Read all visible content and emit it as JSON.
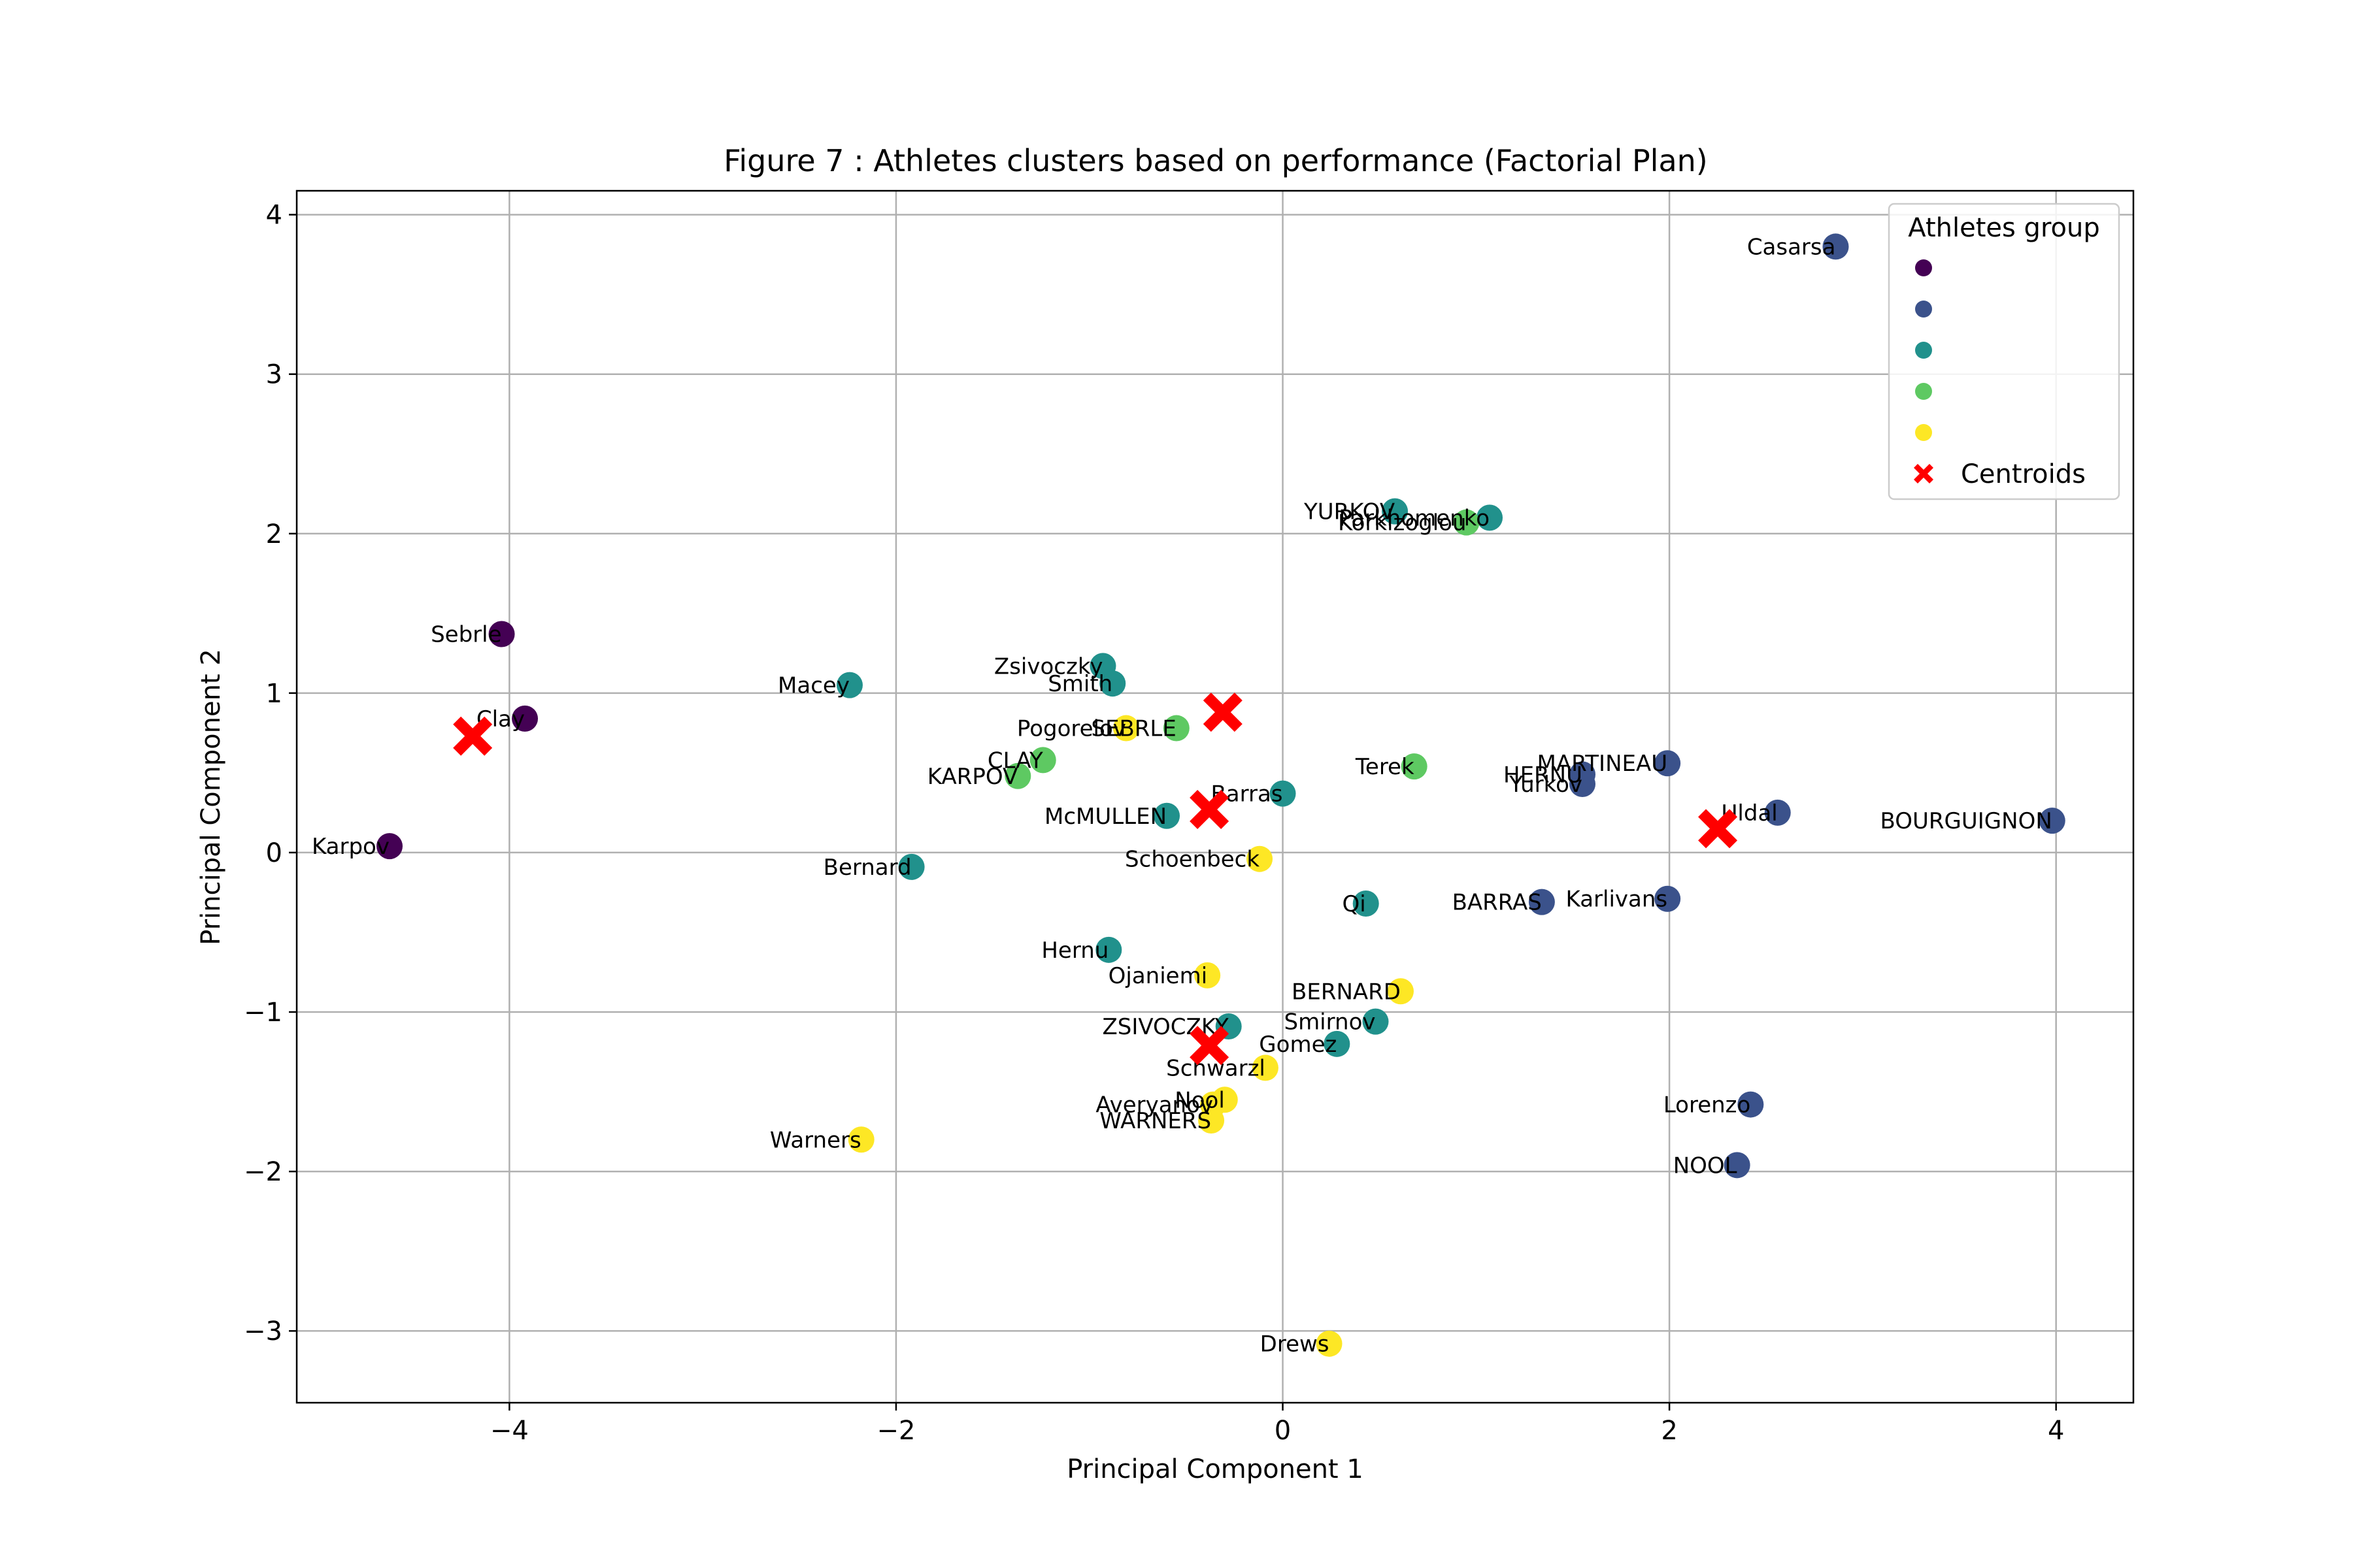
{
  "chart_data": {
    "type": "scatter",
    "title": "Figure 7 : Athletes clusters based on performance (Factorial Plan)",
    "xlabel": "Principal Component 1",
    "ylabel": "Principal Component 2",
    "xlim": [
      -5.1,
      4.4
    ],
    "ylim": [
      -3.45,
      4.15
    ],
    "xticks": [
      -4,
      -2,
      0,
      2,
      4
    ],
    "yticks": [
      -3,
      -2,
      -1,
      0,
      1,
      2,
      3,
      4
    ],
    "grid": true,
    "legend": {
      "title": "Athletes group",
      "placement": "top-right",
      "entries": [
        {
          "label": "",
          "color": "#440154",
          "marker": "circle"
        },
        {
          "label": "",
          "color": "#3b528b",
          "marker": "circle"
        },
        {
          "label": "",
          "color": "#21918c",
          "marker": "circle"
        },
        {
          "label": "",
          "color": "#5ec962",
          "marker": "circle"
        },
        {
          "label": "",
          "color": "#fde725",
          "marker": "circle"
        },
        {
          "label": "Centroids",
          "color": "#ff0000",
          "marker": "x"
        }
      ]
    },
    "group_colors": [
      "#440154",
      "#3b528b",
      "#21918c",
      "#5ec962",
      "#fde725"
    ],
    "centroid_color": "#ff0000",
    "points": [
      {
        "name": "Sebrle",
        "x": -4.04,
        "y": 1.37,
        "group": 0
      },
      {
        "name": "Clay",
        "x": -3.92,
        "y": 0.84,
        "group": 0
      },
      {
        "name": "Karpov",
        "x": -4.62,
        "y": 0.04,
        "group": 0
      },
      {
        "name": "Casarsa",
        "x": 2.86,
        "y": 3.8,
        "group": 1
      },
      {
        "name": "MARTINEAU",
        "x": 1.99,
        "y": 0.56,
        "group": 1
      },
      {
        "name": "HERNU",
        "x": 1.55,
        "y": 0.49,
        "group": 1
      },
      {
        "name": "Yurkov",
        "x": 1.55,
        "y": 0.43,
        "group": 1
      },
      {
        "name": "Uldal",
        "x": 2.56,
        "y": 0.25,
        "group": 1
      },
      {
        "name": "BOURGUIGNON",
        "x": 3.98,
        "y": 0.2,
        "group": 1
      },
      {
        "name": "BARRAS",
        "x": 1.34,
        "y": -0.31,
        "group": 1
      },
      {
        "name": "Karlivans",
        "x": 1.99,
        "y": -0.29,
        "group": 1
      },
      {
        "name": "Lorenzo",
        "x": 2.42,
        "y": -1.58,
        "group": 1
      },
      {
        "name": "NOOL",
        "x": 2.35,
        "y": -1.96,
        "group": 1
      },
      {
        "name": "YURKOV",
        "x": 0.58,
        "y": 2.14,
        "group": 2
      },
      {
        "name": "Parkhomenko",
        "x": 1.07,
        "y": 2.1,
        "group": 2
      },
      {
        "name": "Macey",
        "x": -2.24,
        "y": 1.05,
        "group": 2
      },
      {
        "name": "Zsivoczky",
        "x": -0.93,
        "y": 1.17,
        "group": 2
      },
      {
        "name": "Smith",
        "x": -0.88,
        "y": 1.06,
        "group": 2
      },
      {
        "name": "Barras",
        "x": 0.0,
        "y": 0.37,
        "group": 2
      },
      {
        "name": "McMULLEN",
        "x": -0.6,
        "y": 0.23,
        "group": 2
      },
      {
        "name": "Bernard",
        "x": -1.92,
        "y": -0.09,
        "group": 2
      },
      {
        "name": "Qi",
        "x": 0.43,
        "y": -0.32,
        "group": 2
      },
      {
        "name": "Hernu",
        "x": -0.9,
        "y": -0.61,
        "group": 2
      },
      {
        "name": "ZSIVOCZKY",
        "x": -0.28,
        "y": -1.09,
        "group": 2
      },
      {
        "name": "Smirnov",
        "x": 0.48,
        "y": -1.06,
        "group": 2
      },
      {
        "name": "Gomez",
        "x": 0.28,
        "y": -1.2,
        "group": 2
      },
      {
        "name": "Korkizoglou",
        "x": 0.95,
        "y": 2.07,
        "group": 3
      },
      {
        "name": "SEBRLE",
        "x": -0.55,
        "y": 0.78,
        "group": 3
      },
      {
        "name": "CLAY",
        "x": -1.24,
        "y": 0.58,
        "group": 3
      },
      {
        "name": "KARPOV",
        "x": -1.37,
        "y": 0.48,
        "group": 3
      },
      {
        "name": "Terek",
        "x": 0.68,
        "y": 0.54,
        "group": 3
      },
      {
        "name": "Pogorelov",
        "x": -0.81,
        "y": 0.78,
        "group": 4
      },
      {
        "name": "Schoenbeck",
        "x": -0.12,
        "y": -0.04,
        "group": 4
      },
      {
        "name": "Ojaniemi",
        "x": -0.39,
        "y": -0.77,
        "group": 4
      },
      {
        "name": "BERNARD",
        "x": 0.61,
        "y": -0.87,
        "group": 4
      },
      {
        "name": "Schwarzl",
        "x": -0.09,
        "y": -1.35,
        "group": 4
      },
      {
        "name": "Nool",
        "x": -0.3,
        "y": -1.55,
        "group": 4
      },
      {
        "name": "Averyanov",
        "x": -0.36,
        "y": -1.58,
        "group": 4
      },
      {
        "name": "WARNERS",
        "x": -0.37,
        "y": -1.68,
        "group": 4
      },
      {
        "name": "Warners",
        "x": -2.18,
        "y": -1.8,
        "group": 4
      },
      {
        "name": "Drews",
        "x": 0.24,
        "y": -3.08,
        "group": 4
      }
    ],
    "centroids": [
      {
        "x": -4.19,
        "y": 0.73
      },
      {
        "x": 2.25,
        "y": 0.15
      },
      {
        "x": -0.38,
        "y": 0.27
      },
      {
        "x": -0.31,
        "y": 0.88
      },
      {
        "x": -0.38,
        "y": -1.21
      }
    ]
  }
}
